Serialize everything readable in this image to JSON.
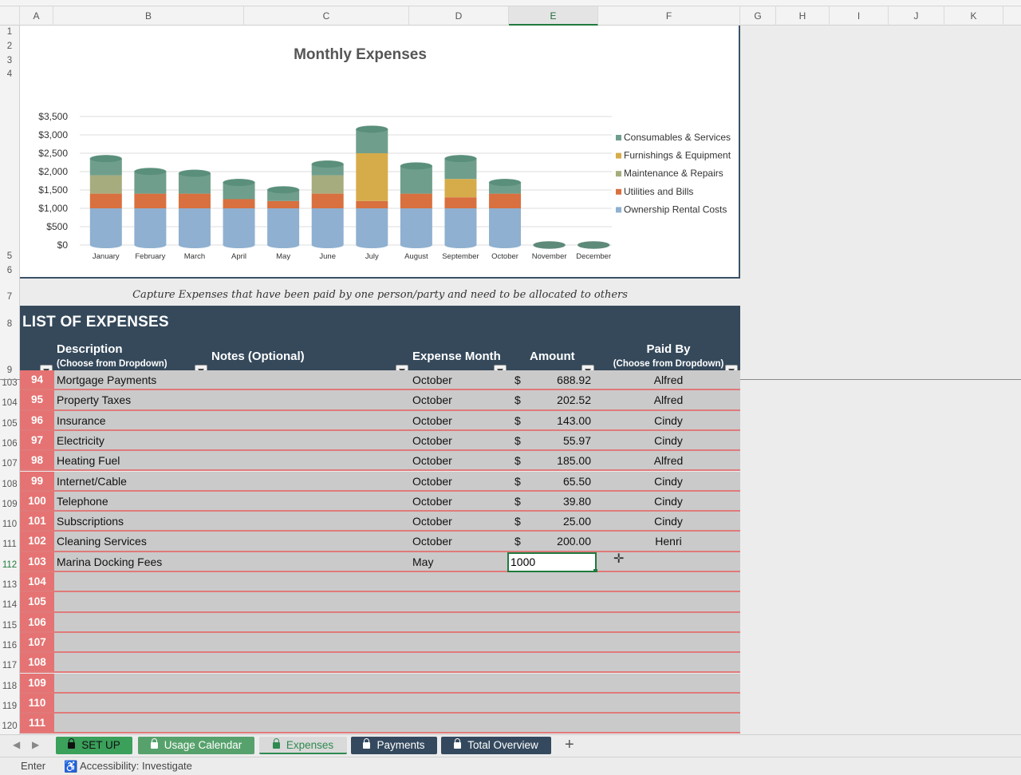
{
  "columns": [
    "A",
    "B",
    "C",
    "D",
    "E",
    "F",
    "G",
    "H",
    "I",
    "J",
    "K"
  ],
  "active_column": "E",
  "top_rows": [
    "1",
    "2",
    "3",
    "4",
    "5",
    "6",
    "7",
    "8",
    "9"
  ],
  "chart_data": {
    "type": "bar",
    "stacked": true,
    "title": "Monthly Expenses",
    "categories": [
      "January",
      "February",
      "March",
      "April",
      "May",
      "June",
      "July",
      "August",
      "September",
      "October",
      "November",
      "December"
    ],
    "ylim": [
      0,
      3500
    ],
    "yticks": [
      "$0",
      "$500",
      "$1,000",
      "$1,500",
      "$2,000",
      "$2,500",
      "$3,000",
      "$3,500"
    ],
    "legend_position": "right",
    "series": [
      {
        "name": "Ownership Rental Costs",
        "color": "#8fb0d0",
        "values": [
          1000,
          1000,
          1000,
          1000,
          1000,
          1000,
          1000,
          1000,
          1000,
          1000,
          0,
          0
        ]
      },
      {
        "name": "Utilities and Bills",
        "color": "#d9703f",
        "values": [
          400,
          400,
          400,
          250,
          200,
          400,
          200,
          400,
          300,
          400,
          0,
          0
        ]
      },
      {
        "name": "Maintenance & Repairs",
        "color": "#a7ac7e",
        "values": [
          500,
          0,
          0,
          0,
          0,
          500,
          0,
          0,
          0,
          0,
          0,
          0
        ]
      },
      {
        "name": "Furnishings & Equipment",
        "color": "#d6ac4a",
        "values": [
          0,
          0,
          0,
          0,
          0,
          0,
          1300,
          0,
          500,
          0,
          0,
          0
        ]
      },
      {
        "name": "Consumables & Services",
        "color": "#6f9f8c",
        "values": [
          450,
          600,
          550,
          450,
          300,
          300,
          650,
          750,
          550,
          300,
          0,
          0
        ]
      }
    ]
  },
  "caption": "Capture Expenses that have been paid by one person/party and need to be allocated to others",
  "table": {
    "title": "LIST OF EXPENSES",
    "headers": {
      "description": "Description",
      "description_sub": "(Choose from Dropdown)",
      "notes": "Notes (Optional)",
      "month": "Expense Month",
      "amount": "Amount",
      "paid_by": "Paid By",
      "paid_by_sub": "(Choose from Dropdown)"
    },
    "rows": [
      {
        "row": "103",
        "num": "94",
        "description": "Mortgage Payments",
        "month": "October",
        "currency": "$",
        "amount": "688.92",
        "paid_by": "Alfred"
      },
      {
        "row": "104",
        "num": "95",
        "description": "Property Taxes",
        "month": "October",
        "currency": "$",
        "amount": "202.52",
        "paid_by": "Alfred"
      },
      {
        "row": "105",
        "num": "96",
        "description": "Insurance",
        "month": "October",
        "currency": "$",
        "amount": "143.00",
        "paid_by": "Cindy"
      },
      {
        "row": "106",
        "num": "97",
        "description": "Electricity",
        "month": "October",
        "currency": "$",
        "amount": "55.97",
        "paid_by": "Cindy"
      },
      {
        "row": "107",
        "num": "98",
        "description": "Heating Fuel",
        "month": "October",
        "currency": "$",
        "amount": "185.00",
        "paid_by": "Alfred"
      },
      {
        "row": "108",
        "num": "99",
        "description": "Internet/Cable",
        "month": "October",
        "currency": "$",
        "amount": "65.50",
        "paid_by": "Cindy"
      },
      {
        "row": "109",
        "num": "100",
        "description": "Telephone",
        "month": "October",
        "currency": "$",
        "amount": "39.80",
        "paid_by": "Cindy"
      },
      {
        "row": "110",
        "num": "101",
        "description": "Subscriptions",
        "month": "October",
        "currency": "$",
        "amount": "25.00",
        "paid_by": "Cindy"
      },
      {
        "row": "111",
        "num": "102",
        "description": "Cleaning Services",
        "month": "October",
        "currency": "$",
        "amount": "200.00",
        "paid_by": "Henri"
      },
      {
        "row": "112",
        "num": "103",
        "description": "Marina Docking Fees",
        "month": "May",
        "currency": "",
        "amount": "",
        "paid_by": "",
        "editing": "1000"
      },
      {
        "row": "113",
        "num": "104",
        "description": "",
        "month": "",
        "currency": "",
        "amount": "",
        "paid_by": ""
      },
      {
        "row": "114",
        "num": "105",
        "description": "",
        "month": "",
        "currency": "",
        "amount": "",
        "paid_by": ""
      },
      {
        "row": "115",
        "num": "106",
        "description": "",
        "month": "",
        "currency": "",
        "amount": "",
        "paid_by": ""
      },
      {
        "row": "116",
        "num": "107",
        "description": "",
        "month": "",
        "currency": "",
        "amount": "",
        "paid_by": ""
      },
      {
        "row": "117",
        "num": "108",
        "description": "",
        "month": "",
        "currency": "",
        "amount": "",
        "paid_by": ""
      },
      {
        "row": "118",
        "num": "109",
        "description": "",
        "month": "",
        "currency": "",
        "amount": "",
        "paid_by": ""
      },
      {
        "row": "119",
        "num": "110",
        "description": "",
        "month": "",
        "currency": "",
        "amount": "",
        "paid_by": ""
      },
      {
        "row": "120",
        "num": "111",
        "description": "",
        "month": "",
        "currency": "",
        "amount": "",
        "paid_by": ""
      }
    ]
  },
  "sheet_tabs": [
    {
      "label": "SET UP",
      "bg": "#3aa05a",
      "fg": "#111111"
    },
    {
      "label": "Usage Calendar",
      "bg": "#57a26c",
      "fg": "#ffffff"
    },
    {
      "label": "Expenses",
      "bg": "#d9d9d9",
      "fg": "#2e8a50",
      "active": true
    },
    {
      "label": "Payments",
      "bg": "#34495e",
      "fg": "#ffffff"
    },
    {
      "label": "Total Overview",
      "bg": "#34495e",
      "fg": "#ffffff"
    }
  ],
  "status": {
    "mode": "Enter",
    "accessibility": "Accessibility: Investigate"
  }
}
